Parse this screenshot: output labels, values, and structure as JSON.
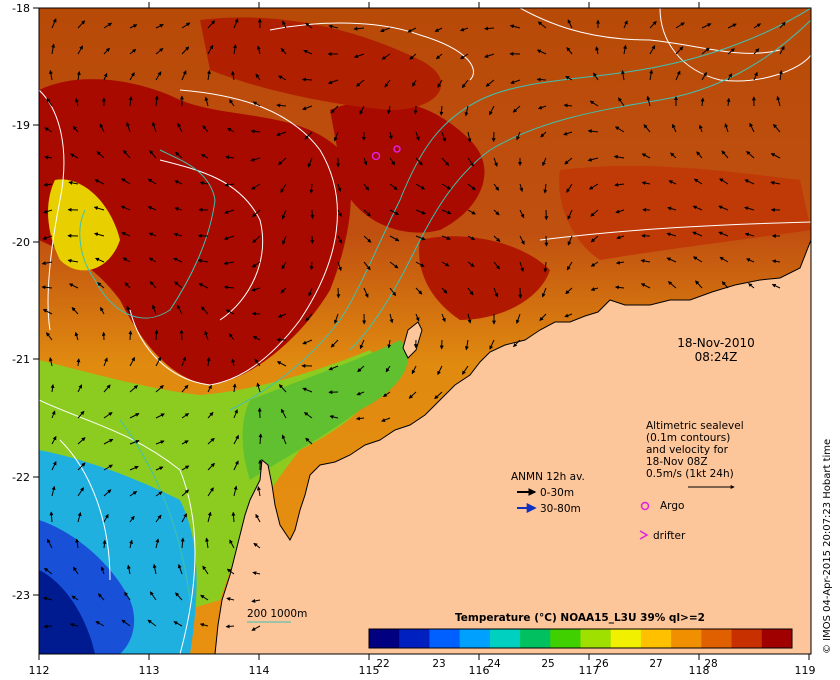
{
  "map": {
    "axes": {
      "x_ticks": [
        "112",
        "113",
        "114",
        "115",
        "116",
        "117",
        "118",
        "119"
      ],
      "y_ticks": [
        "-18",
        "-19",
        "-20",
        "-21",
        "-22",
        "-23"
      ]
    },
    "timestamp": {
      "date": "18-Nov-2010",
      "time": "08:24Z"
    },
    "altimetric_note": [
      "Altimetric sealevel",
      "(0.1m contours)",
      "and velocity for",
      "18-Nov 08Z",
      "0.5m/s (1kt 24h)"
    ],
    "anmn": {
      "title": "ANMN 12h av.",
      "depth1": "0-30m",
      "depth2": "30-80m",
      "color1": "#000000",
      "color2": "#1030c0"
    },
    "legend": {
      "argo": "Argo",
      "drifter": "drifter",
      "argo_color": "#e020e0"
    },
    "isobaths": {
      "label": "200  1000m",
      "color": "#40c0b0"
    },
    "colorbar": {
      "title": "Temperature (°C) NOAA15_L3U 39% ql>=2",
      "ticks": [
        "22",
        "23",
        "24",
        "25",
        "26",
        "27",
        "28"
      ],
      "colors": [
        "#000080",
        "#0020c0",
        "#0060ff",
        "#00a0ff",
        "#00d0c0",
        "#00c060",
        "#40d000",
        "#a0e000",
        "#f0f000",
        "#ffc000",
        "#f09000",
        "#e06000",
        "#c83000",
        "#a00000"
      ]
    },
    "credit": "© IMOS 04-Apr-2015 20:07:23 Hobart time",
    "land_color": "#fdc59a"
  }
}
